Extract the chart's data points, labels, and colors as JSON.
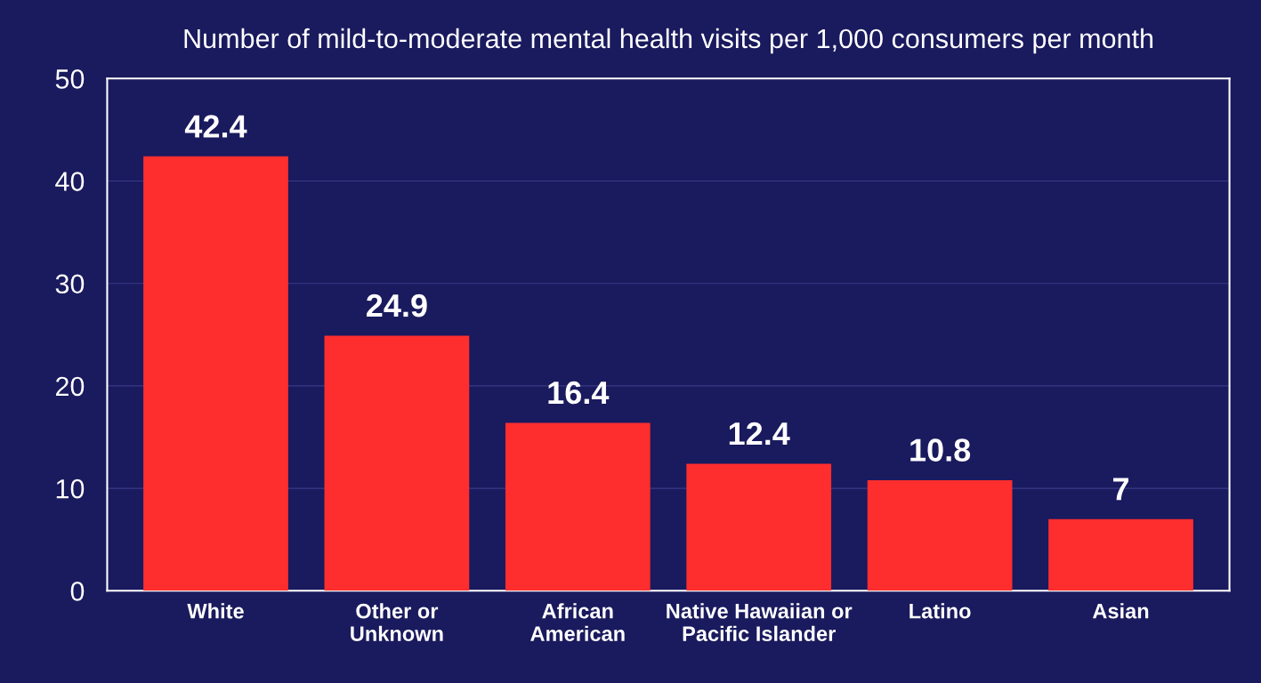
{
  "chart_data": {
    "type": "bar",
    "title": "Number of mild-to-moderate mental health visits per 1,000 consumers per month",
    "categories": [
      "White",
      "Other or\nUnknown",
      "African\nAmerican",
      "Native Hawaiian or\nPacific Islander",
      "Latino",
      "Asian"
    ],
    "values": [
      42.4,
      24.9,
      16.4,
      12.4,
      10.8,
      7
    ],
    "color": "#ff2e2e",
    "ylim": [
      0,
      50
    ],
    "yticks": [
      0,
      10,
      20,
      30,
      40,
      50
    ],
    "grid": "y",
    "data_labels": true
  }
}
